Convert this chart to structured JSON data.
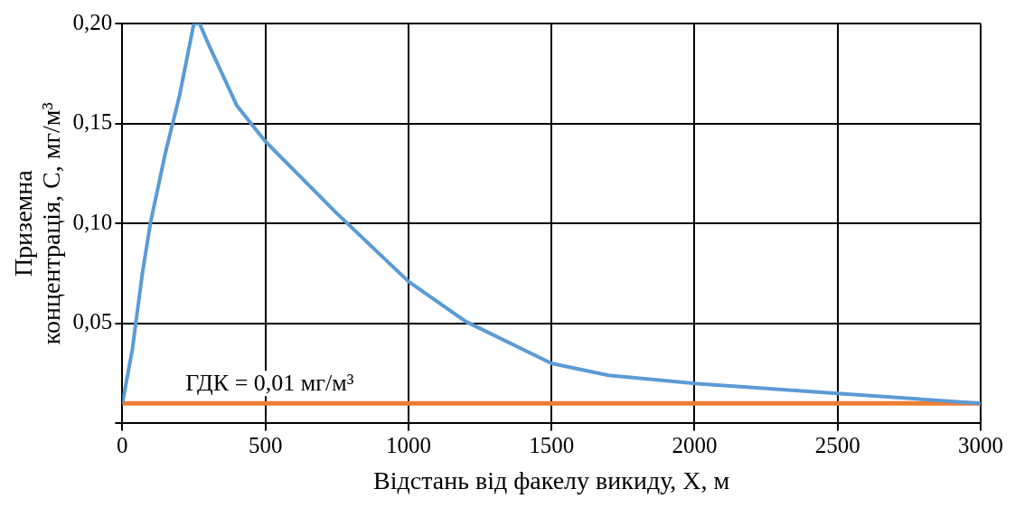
{
  "chart_data": {
    "type": "line",
    "xlabel": "Відстань від факелу викиду, X, м",
    "ylabel": "Приземна концентрація, C, мг/м³",
    "x": [
      0,
      35,
      70,
      98,
      150,
      200,
      250,
      270,
      300,
      400,
      500,
      750,
      1000,
      1200,
      1500,
      1700,
      2000,
      2500,
      3000
    ],
    "series": [
      {
        "color": "#5b9bd5",
        "values": [
          0.01,
          0.037,
          0.075,
          0.1,
          0.135,
          0.164,
          0.2,
          0.2,
          0.19,
          0.159,
          0.141,
          0.105,
          0.071,
          0.051,
          0.03,
          0.024,
          0.02,
          0.015,
          0.01
        ]
      }
    ],
    "xlim": [
      0,
      3000
    ],
    "xticks": [
      0,
      500,
      1000,
      1500,
      2000,
      2500,
      3000
    ],
    "ylim": [
      0,
      0.2
    ],
    "yticks": [
      {
        "value": 0,
        "label": null
      },
      {
        "value": 0.05,
        "label": "0,05"
      },
      {
        "value": 0.1,
        "label": "0,10"
      },
      {
        "value": 0.15,
        "label": "0,15"
      },
      {
        "value": 0.2,
        "label": "0,20"
      }
    ],
    "ref_lines": [
      {
        "axis": "y",
        "value": 0.01,
        "label": "ГДК = 0,01 мг/м³",
        "color": "#ed7d31"
      }
    ],
    "grid": true,
    "legend": false,
    "marker": "none",
    "line_style": "solid"
  }
}
